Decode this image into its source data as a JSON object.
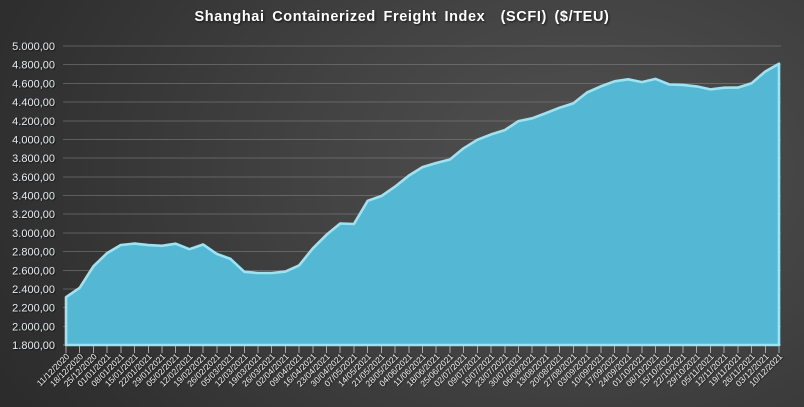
{
  "chart_data": {
    "type": "area",
    "title": "Shanghai Containerized Freight Index  (SCFI) ($/TEU)",
    "xlabel": "",
    "ylabel": "",
    "ylim": [
      1800,
      5000
    ],
    "ytick_step": 200,
    "grid": true,
    "legend": false,
    "ytick_labels": [
      "5.000,00",
      "4.800,00",
      "4.600,00",
      "4.400,00",
      "4.200,00",
      "4.000,00",
      "3.800,00",
      "3.600,00",
      "3.400,00",
      "3.200,00",
      "3.000,00",
      "2.800,00",
      "2.600,00",
      "2.400,00",
      "2.200,00",
      "2.000,00",
      "1.800,00"
    ],
    "x": [
      "11/12/2020",
      "18/12/2020",
      "25/12/2020",
      "01/01/2021",
      "08/01/2021",
      "15/01/2021",
      "22/01/2021",
      "29/01/2021",
      "05/02/2021",
      "12/02/2021",
      "19/02/2021",
      "26/02/2021",
      "05/03/2021",
      "12/03/2021",
      "19/03/2021",
      "26/03/2021",
      "02/04/2021",
      "09/04/2021",
      "16/04/2021",
      "23/04/2021",
      "30/04/2021",
      "07/05/2021",
      "14/05/2021",
      "21/05/2021",
      "28/05/2021",
      "04/06/2021",
      "11/06/2021",
      "18/06/2021",
      "25/06/2021",
      "02/07/2021",
      "09/07/2021",
      "16/07/2021",
      "23/07/2021",
      "30/07/2021",
      "06/08/2021",
      "13/08/2021",
      "20/08/2021",
      "27/08/2021",
      "03/09/2021",
      "10/09/2021",
      "17/09/2021",
      "24/09/2021",
      "01/10/2021",
      "08/10/2021",
      "15/10/2021",
      "22/10/2021",
      "29/10/2021",
      "05/11/2021",
      "12/11/2021",
      "19/11/2021",
      "26/11/2021",
      "03/12/2021",
      "10/12/2021"
    ],
    "series": [
      {
        "name": "SCFI",
        "values": [
          2311.71,
          2411.82,
          2641.87,
          2783.03,
          2870.34,
          2885.0,
          2868.95,
          2861.69,
          2884.6,
          2825.75,
          2875.93,
          2775.31,
          2721.94,
          2583.38,
          2570.68,
          2570.24,
          2585.44,
          2652.12,
          2833.42,
          2979.76,
          3100.74,
          3095.16,
          3343.34,
          3394.62,
          3495.76,
          3613.07,
          3703.93,
          3748.36,
          3785.4,
          3905.14,
          3996.2,
          4054.42,
          4100.1,
          4196.24,
          4225.86,
          4281.53,
          4340.18,
          4385.62,
          4502.65,
          4568.16,
          4622.51,
          4643.79,
          4614.0,
          4647.6,
          4588.07,
          4583.39,
          4567.28,
          4535.92,
          4554.07,
          4555.0,
          4601.97,
          4727.06,
          4810.98
        ]
      }
    ],
    "colors": {
      "area_fill": "#54b8d4",
      "area_edge": "#9de3f2",
      "grid": "#8a8a8a",
      "y_label_text": "#e9eef0",
      "x_label_text": "#f2f2f2",
      "title_text": "#ffffff"
    }
  }
}
